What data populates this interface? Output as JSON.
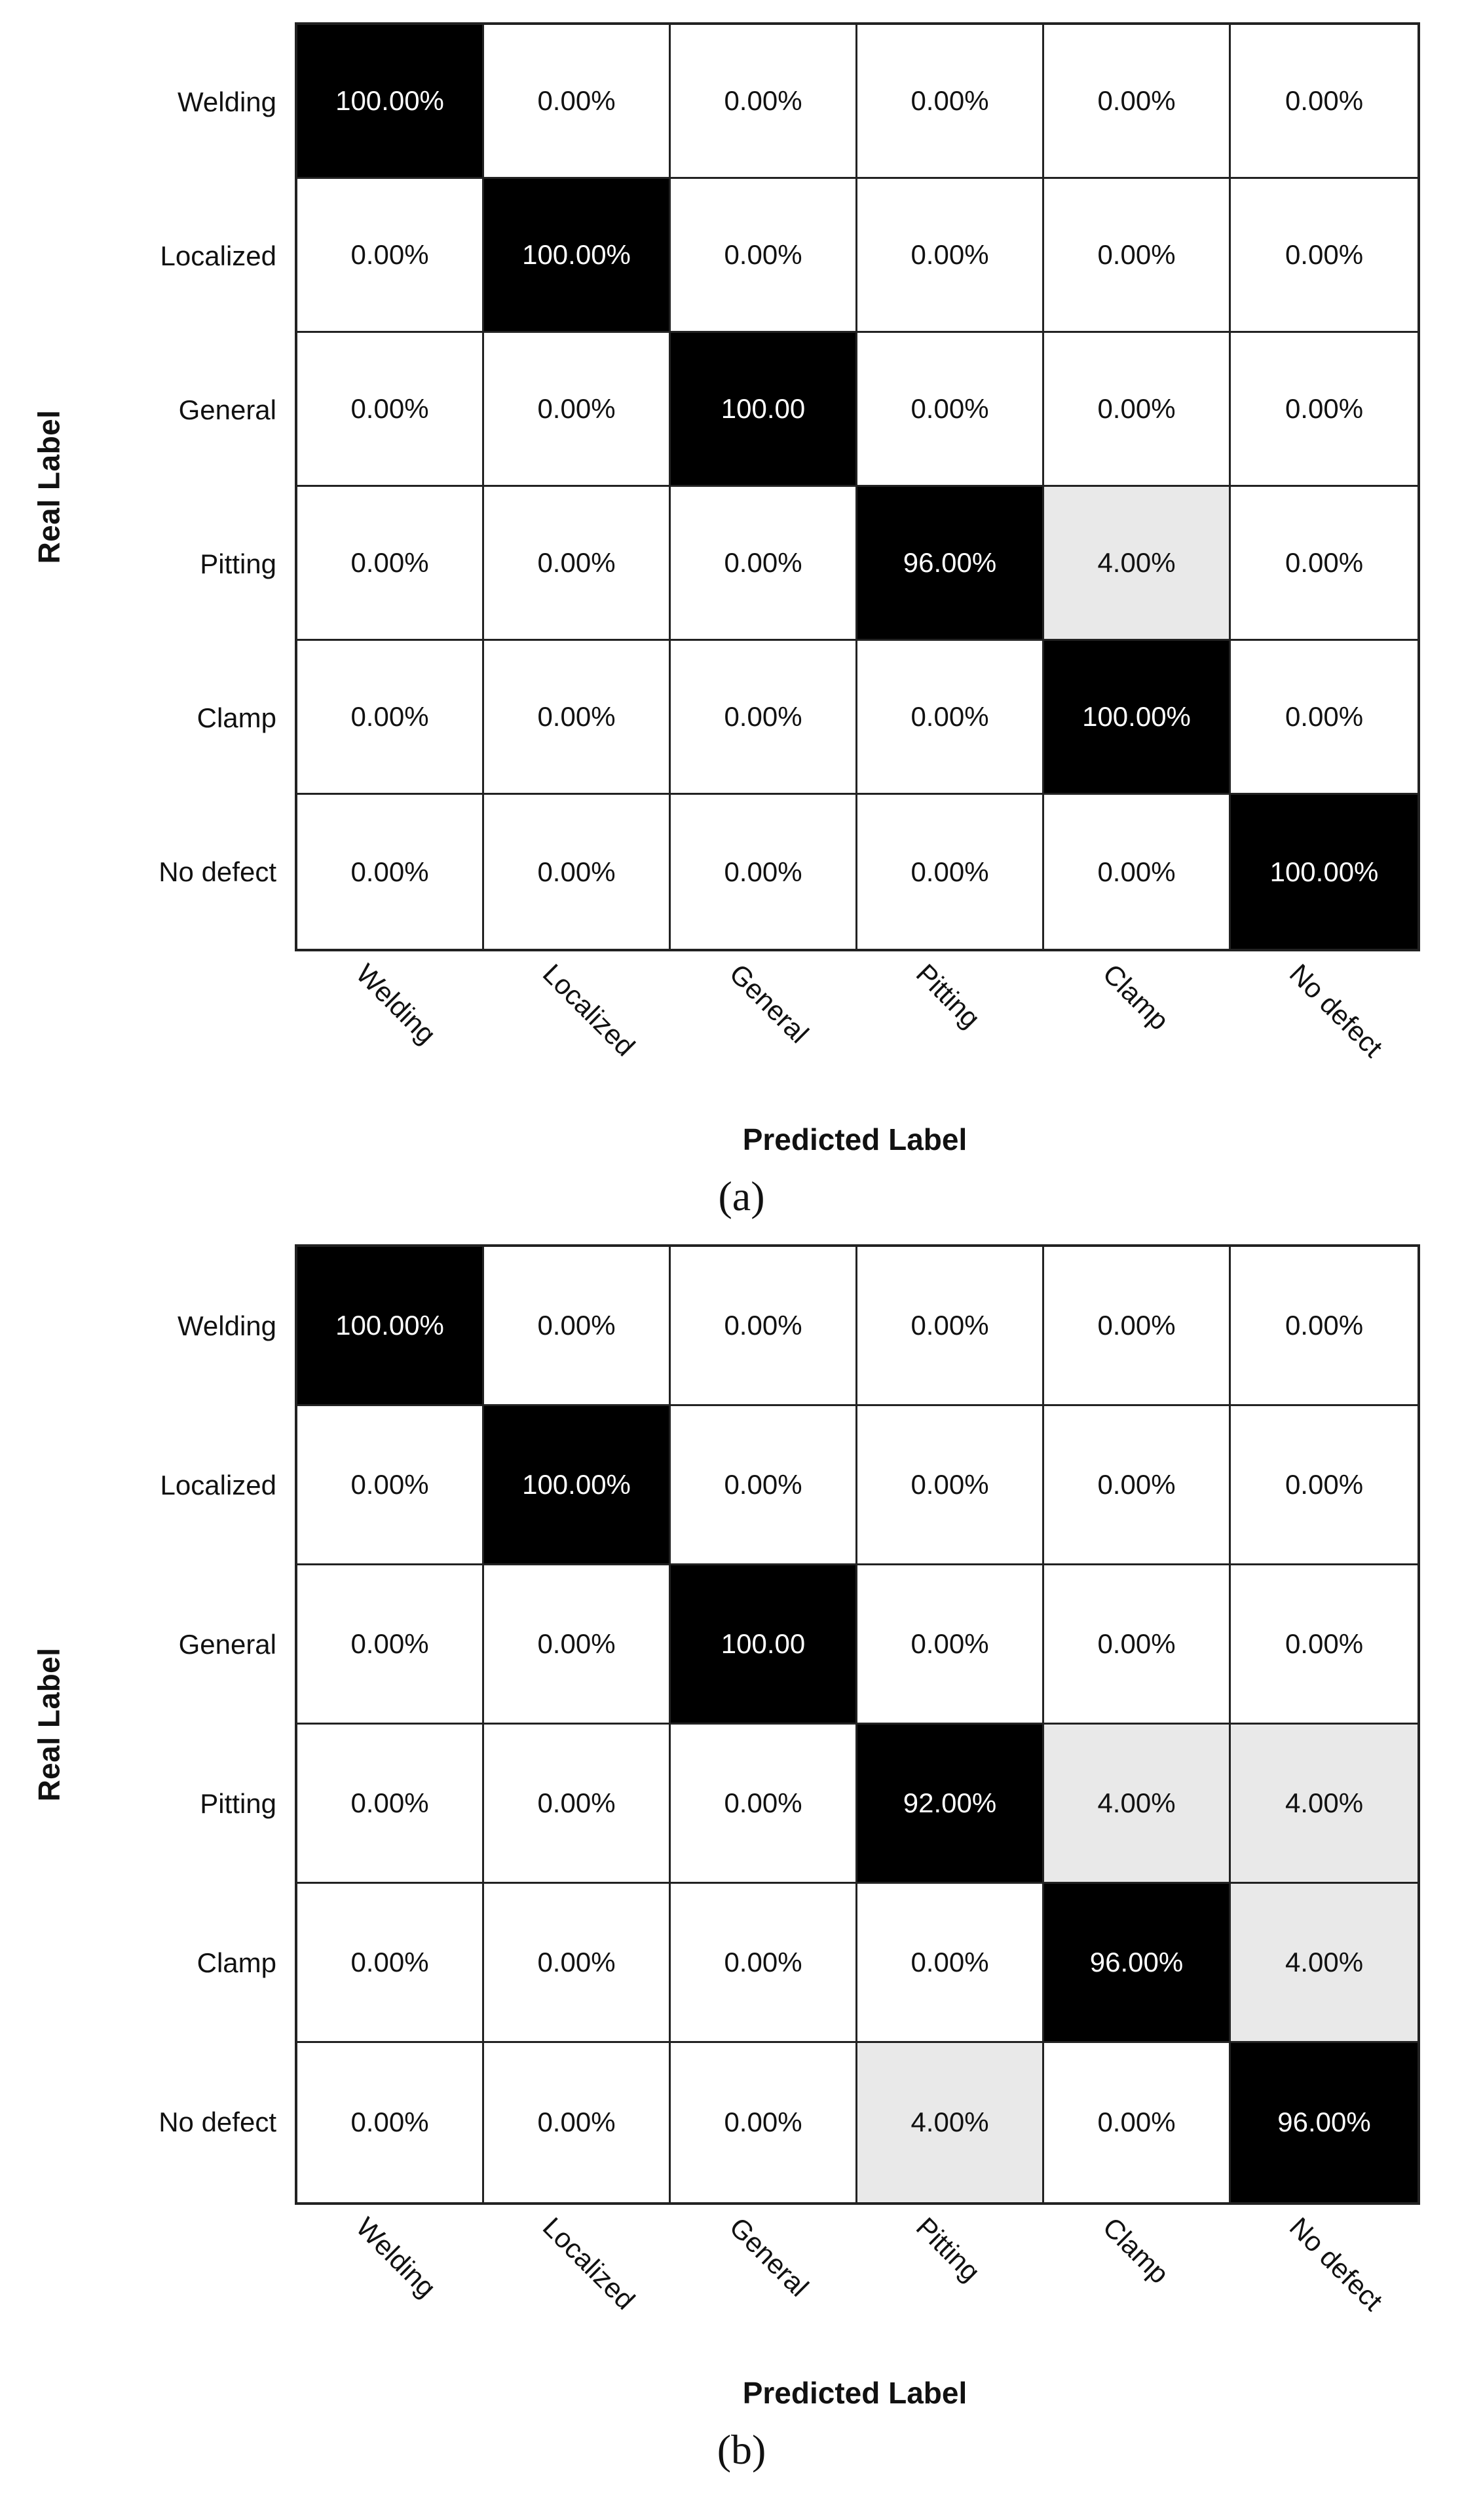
{
  "figure": {
    "background": "#ffffff",
    "colors": {
      "diagonal_bg": "#000000",
      "diagonal_text": "#ffffff",
      "nonzero_offdiag_bg": "#e9e9e9",
      "zero_bg": "#ffffff",
      "text": "#111111",
      "grid_line": "#222222"
    },
    "panels": [
      {
        "caption": "(a)",
        "x_axis_title": "Predicted Label",
        "y_axis_title": "Real Label",
        "labels": [
          "Welding",
          "Localized",
          "General",
          "Pitting",
          "Clamp",
          "No defect"
        ],
        "cells": [
          [
            "100.00%",
            "0.00%",
            "0.00%",
            "0.00%",
            "0.00%",
            "0.00%"
          ],
          [
            "0.00%",
            "100.00%",
            "0.00%",
            "0.00%",
            "0.00%",
            "0.00%"
          ],
          [
            "0.00%",
            "0.00%",
            "100.00",
            "0.00%",
            "0.00%",
            "0.00%"
          ],
          [
            "0.00%",
            "0.00%",
            "0.00%",
            "96.00%",
            "4.00%",
            "0.00%"
          ],
          [
            "0.00%",
            "0.00%",
            "0.00%",
            "0.00%",
            "100.00%",
            "0.00%"
          ],
          [
            "0.00%",
            "0.00%",
            "0.00%",
            "0.00%",
            "0.00%",
            "100.00%"
          ]
        ]
      },
      {
        "caption": "(b)",
        "x_axis_title": "Predicted Label",
        "y_axis_title": "Real Label",
        "labels": [
          "Welding",
          "Localized",
          "General",
          "Pitting",
          "Clamp",
          "No defect"
        ],
        "cells": [
          [
            "100.00%",
            "0.00%",
            "0.00%",
            "0.00%",
            "0.00%",
            "0.00%"
          ],
          [
            "0.00%",
            "100.00%",
            "0.00%",
            "0.00%",
            "0.00%",
            "0.00%"
          ],
          [
            "0.00%",
            "0.00%",
            "100.00",
            "0.00%",
            "0.00%",
            "0.00%"
          ],
          [
            "0.00%",
            "0.00%",
            "0.00%",
            "92.00%",
            "4.00%",
            "4.00%"
          ],
          [
            "0.00%",
            "0.00%",
            "0.00%",
            "0.00%",
            "96.00%",
            "4.00%"
          ],
          [
            "0.00%",
            "0.00%",
            "0.00%",
            "4.00%",
            "0.00%",
            "96.00%"
          ]
        ]
      }
    ]
  },
  "chart_data": [
    {
      "type": "heatmap",
      "title": "(a)",
      "xlabel": "Predicted Label",
      "ylabel": "Real Label",
      "x_categories": [
        "Welding",
        "Localized",
        "General",
        "Pitting",
        "Clamp",
        "No defect"
      ],
      "y_categories": [
        "Welding",
        "Localized",
        "General",
        "Pitting",
        "Clamp",
        "No defect"
      ],
      "values_percent": [
        [
          100,
          0,
          0,
          0,
          0,
          0
        ],
        [
          0,
          100,
          0,
          0,
          0,
          0
        ],
        [
          0,
          0,
          100,
          0,
          0,
          0
        ],
        [
          0,
          0,
          0,
          96,
          4,
          0
        ],
        [
          0,
          0,
          0,
          0,
          100,
          0
        ],
        [
          0,
          0,
          0,
          0,
          0,
          100
        ]
      ],
      "legend_position": "none",
      "grid": true
    },
    {
      "type": "heatmap",
      "title": "(b)",
      "xlabel": "Predicted Label",
      "ylabel": "Real Label",
      "x_categories": [
        "Welding",
        "Localized",
        "General",
        "Pitting",
        "Clamp",
        "No defect"
      ],
      "y_categories": [
        "Welding",
        "Localized",
        "General",
        "Pitting",
        "Clamp",
        "No defect"
      ],
      "values_percent": [
        [
          100,
          0,
          0,
          0,
          0,
          0
        ],
        [
          0,
          100,
          0,
          0,
          0,
          0
        ],
        [
          0,
          0,
          100,
          0,
          0,
          0
        ],
        [
          0,
          0,
          0,
          92,
          4,
          4
        ],
        [
          0,
          0,
          0,
          0,
          96,
          4
        ],
        [
          0,
          0,
          0,
          4,
          0,
          96
        ]
      ],
      "legend_position": "none",
      "grid": true
    }
  ]
}
